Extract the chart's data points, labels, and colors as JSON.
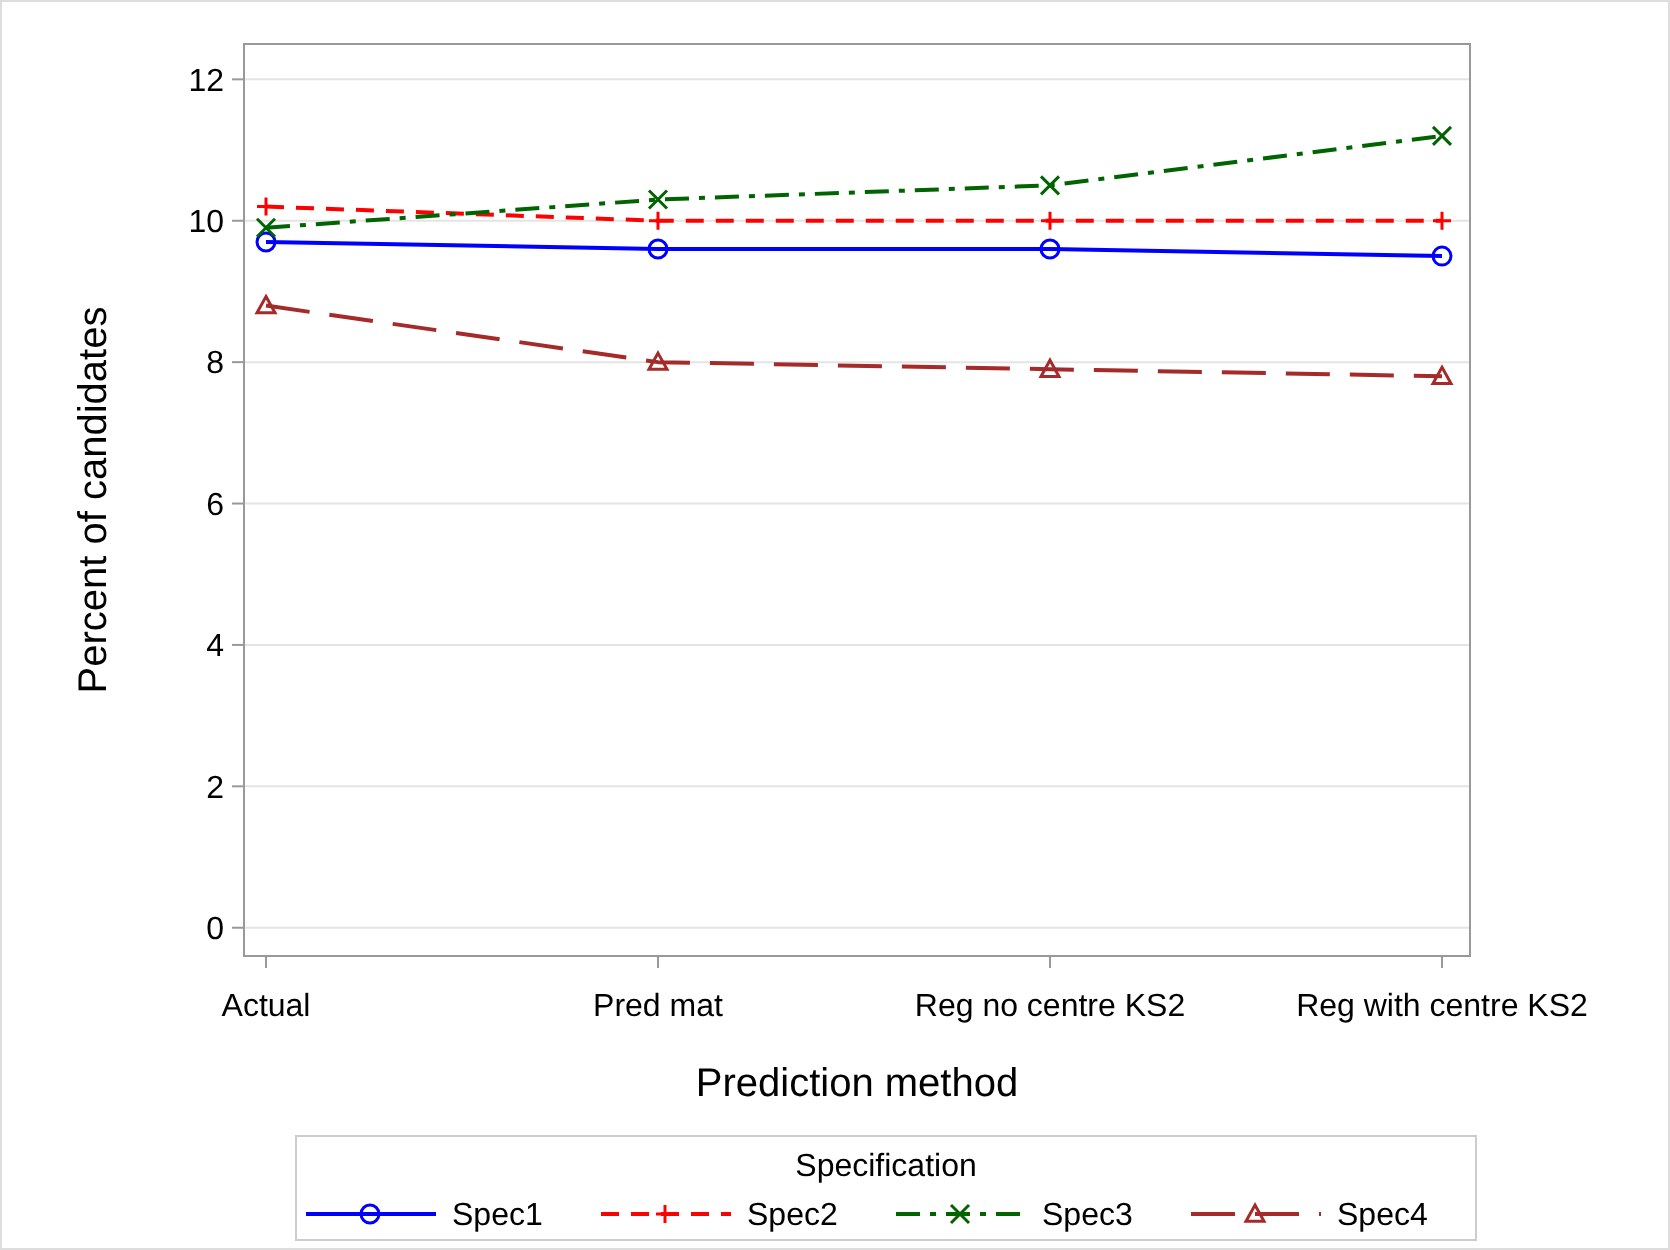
{
  "chart_data": {
    "type": "line",
    "xlabel": "Prediction method",
    "ylabel": "Percent of candidates",
    "legend_title": "Specification",
    "categories": [
      "Actual",
      "Pred mat",
      "Reg no centre KS2",
      "Reg with centre KS2"
    ],
    "series": [
      {
        "name": "Spec1",
        "color": "#0000ff",
        "values": [
          9.7,
          9.6,
          9.6,
          9.5
        ],
        "marker": "circle",
        "line_style": "solid"
      },
      {
        "name": "Spec2",
        "color": "#ff0000",
        "values": [
          10.2,
          10.0,
          10.0,
          10.0
        ],
        "marker": "plus",
        "line_style": "dashed"
      },
      {
        "name": "Spec3",
        "color": "#006400",
        "values": [
          9.9,
          10.3,
          10.5,
          11.2
        ],
        "marker": "cross",
        "line_style": "dashdot"
      },
      {
        "name": "Spec4",
        "color": "#a52a2a",
        "values": [
          8.8,
          8.0,
          7.9,
          7.8
        ],
        "marker": "triangle",
        "line_style": "longdash"
      }
    ],
    "ylim": [
      -0.4,
      12.5
    ],
    "yticks": [
      0,
      2,
      4,
      6,
      8,
      10,
      12
    ],
    "grid": "y",
    "legend": "bottom"
  }
}
